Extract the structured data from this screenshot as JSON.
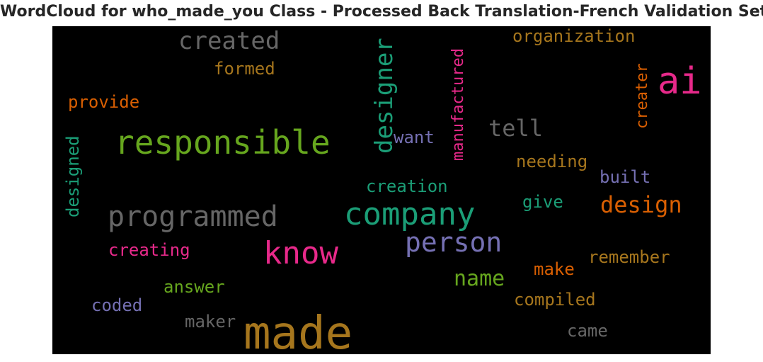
{
  "chart_data": {
    "type": "wordcloud",
    "title": "WordCloud for who_made_you Class - Processed Back Translation-French Validation Set",
    "background": "#000000",
    "words": [
      {
        "text": "made",
        "color": "#a6761d"
      },
      {
        "text": "ai",
        "color": "#e7298a"
      },
      {
        "text": "responsible",
        "color": "#66a61e"
      },
      {
        "text": "company",
        "color": "#1b9e77"
      },
      {
        "text": "know",
        "color": "#e7298a"
      },
      {
        "text": "programmed",
        "color": "#666666"
      },
      {
        "text": "person",
        "color": "#7570b3"
      },
      {
        "text": "designer",
        "color": "#1b9e77"
      },
      {
        "text": "created",
        "color": "#666666"
      },
      {
        "text": "design",
        "color": "#d95f02"
      },
      {
        "text": "tell",
        "color": "#666666"
      },
      {
        "text": "name",
        "color": "#66a61e"
      },
      {
        "text": "manufactured",
        "color": "#e7298a"
      },
      {
        "text": "organization",
        "color": "#a6761d"
      },
      {
        "text": "creater",
        "color": "#d95f02"
      },
      {
        "text": "formed",
        "color": "#a6761d"
      },
      {
        "text": "provide",
        "color": "#d95f02"
      },
      {
        "text": "designed",
        "color": "#1b9e77"
      },
      {
        "text": "want",
        "color": "#7570b3"
      },
      {
        "text": "needing",
        "color": "#a6761d"
      },
      {
        "text": "built",
        "color": "#7570b3"
      },
      {
        "text": "creation",
        "color": "#1b9e77"
      },
      {
        "text": "give",
        "color": "#1b9e77"
      },
      {
        "text": "creating",
        "color": "#e7298a"
      },
      {
        "text": "remember",
        "color": "#a6761d"
      },
      {
        "text": "make",
        "color": "#d95f02"
      },
      {
        "text": "answer",
        "color": "#66a61e"
      },
      {
        "text": "compiled",
        "color": "#a6761d"
      },
      {
        "text": "coded",
        "color": "#7570b3"
      },
      {
        "text": "maker",
        "color": "#666666"
      },
      {
        "text": "came",
        "color": "#666666"
      }
    ]
  }
}
